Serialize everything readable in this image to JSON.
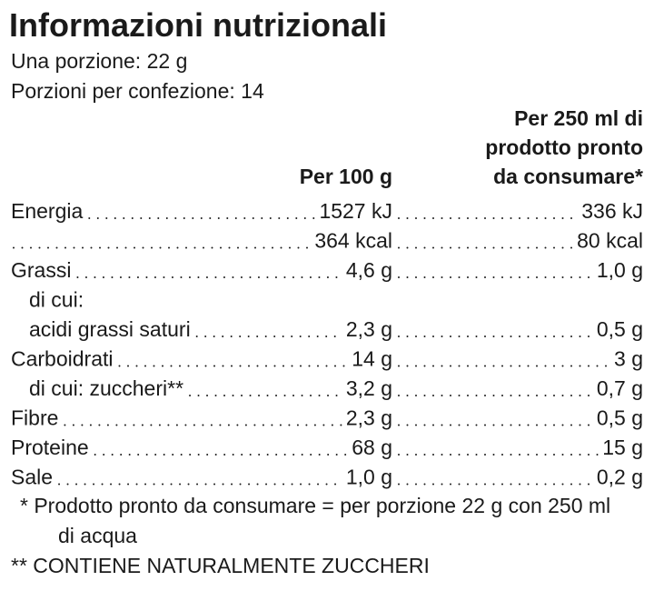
{
  "header": {
    "title": "Informazioni nutrizionali",
    "serving": "Una porzione: 22 g",
    "servings_per_pack": "Porzioni per confezione: 14"
  },
  "table": {
    "columns": [
      [
        "Per 100 g"
      ],
      [
        "Per 250 ml di",
        "prodotto pronto",
        "da consumare*"
      ]
    ],
    "rows": [
      {
        "label": "Energia",
        "level": 0,
        "values": [
          "1527 kJ",
          "336 kJ"
        ]
      },
      {
        "label": null,
        "level": 0,
        "values": [
          "364 kcal",
          "80 kcal"
        ]
      },
      {
        "label": "Grassi",
        "level": 0,
        "values": [
          "4,6 g",
          "1,0 g"
        ]
      },
      {
        "label": "di cui:",
        "level": 1
      },
      {
        "label": "acidi grassi saturi",
        "level": 1,
        "values": [
          "2,3 g",
          "0,5 g"
        ]
      },
      {
        "label": "Carboidrati",
        "level": 0,
        "values": [
          "14 g",
          "3 g"
        ]
      },
      {
        "label": "di cui: zuccheri**",
        "level": 1,
        "values": [
          "3,2 g",
          "0,7 g"
        ]
      },
      {
        "label": "Fibre",
        "level": 0,
        "values": [
          "2,3 g",
          "0,5 g"
        ]
      },
      {
        "label": "Proteine",
        "level": 0,
        "values": [
          "68 g",
          "15 g"
        ]
      },
      {
        "label": "Sale",
        "level": 0,
        "values": [
          "1,0 g",
          "0,2 g"
        ]
      }
    ]
  },
  "footnotes": [
    [
      "* Prodotto pronto da consumare = per porzione 22 g con 250 ml",
      "di acqua"
    ],
    [
      "** CONTIENE NATURALMENTE ZUCCHERI"
    ]
  ]
}
